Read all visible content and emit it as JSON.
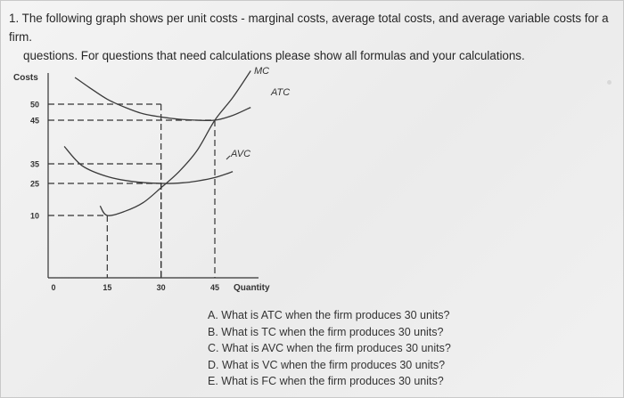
{
  "question": {
    "line1": "1. The following graph shows per unit costs - marginal costs, average total costs, and average variable costs for a firm.",
    "line2": "questions. For questions that need calculations please show all formulas and your calculations."
  },
  "chart_data": {
    "type": "line",
    "title": "",
    "ylabel": "Costs",
    "xlabel": "Quantity",
    "x_ticks": [
      0,
      15,
      30,
      45
    ],
    "y_ticks": [
      10,
      25,
      35,
      45,
      50
    ],
    "xlim": [
      0,
      60
    ],
    "ylim": [
      0,
      62
    ],
    "series": [
      {
        "name": "MC",
        "x": [
          13,
          15,
          20,
          25,
          30,
          35,
          40,
          45,
          50,
          55
        ],
        "y": [
          14.5,
          10,
          12,
          16,
          23,
          31,
          38,
          45,
          52,
          60
        ]
      },
      {
        "name": "ATC",
        "x": [
          6,
          10,
          15,
          20,
          25,
          30,
          35,
          40,
          45,
          50,
          55
        ],
        "y": [
          58,
          55,
          51.5,
          49,
          47,
          46,
          45.3,
          45,
          45,
          46.5,
          49
        ]
      },
      {
        "name": "AVC",
        "x": [
          3,
          8,
          15,
          22,
          30,
          36,
          40,
          45,
          50
        ],
        "y": [
          39,
          34,
          28.5,
          26,
          25,
          25.3,
          26.2,
          28,
          31
        ]
      }
    ],
    "guides": [
      {
        "x": 15,
        "y": 10
      },
      {
        "x": 30,
        "y": 25
      },
      {
        "x": 30,
        "y": 35
      },
      {
        "x": 30,
        "y": 50
      },
      {
        "x": 45,
        "y": 45
      }
    ]
  },
  "questions": [
    "A. What is ATC when the firm produces 30 units?",
    "B. What is TC when the firm produces 30 units?",
    "C. What is AVC when the firm produces 30 units?",
    "D. What is VC when the firm produces 30 units?",
    "E. What is FC when the firm produces 30 units?"
  ],
  "colors": {
    "curve": "#3a3a3a",
    "axis": "#333333",
    "guide": "#333333"
  }
}
